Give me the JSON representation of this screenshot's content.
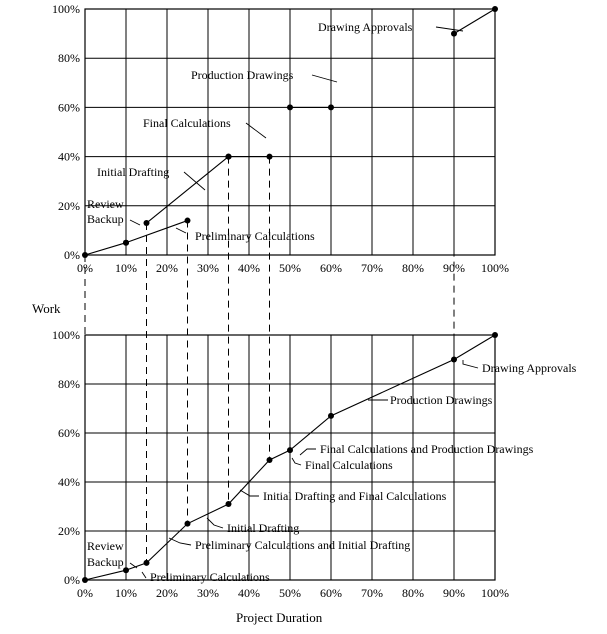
{
  "chart_data": [
    {
      "type": "line",
      "x_ticks": [
        "0%",
        "10%",
        "20%",
        "30%",
        "40%",
        "50%",
        "60%",
        "70%",
        "80%",
        "90%",
        "100%"
      ],
      "y_ticks": [
        "0%",
        "20%",
        "40%",
        "60%",
        "80%",
        "100%"
      ],
      "xlim": [
        0,
        100
      ],
      "ylim": [
        0,
        100
      ],
      "grid": true,
      "series": [
        {
          "name": "Review Backup",
          "points": [
            [
              0,
              0
            ],
            [
              10,
              5
            ]
          ]
        },
        {
          "name": "Preliminary Calculations",
          "points": [
            [
              10,
              5
            ],
            [
              25,
              14
            ]
          ]
        },
        {
          "name": "Initial Drafting",
          "points": [
            [
              15,
              13
            ],
            [
              35,
              40
            ]
          ]
        },
        {
          "name": "Final Calculations",
          "points": [
            [
              35,
              40
            ],
            [
              45,
              40
            ]
          ]
        },
        {
          "name": "Production Drawings",
          "points": [
            [
              50,
              60
            ],
            [
              60,
              60
            ]
          ]
        },
        {
          "name": "Drawing Approvals",
          "points": [
            [
              90,
              90
            ],
            [
              100,
              100
            ]
          ]
        }
      ],
      "annotations": [
        {
          "text": "Drawing Approvals",
          "at": [
            90,
            90
          ]
        },
        {
          "text": "Production Drawings",
          "at": [
            60,
            71
          ]
        },
        {
          "text": "Final Calculations",
          "at": [
            44,
            47
          ]
        },
        {
          "text": "Initial Drafting",
          "at": [
            29,
            26
          ]
        },
        {
          "text": "Review",
          "at": [
            6,
            4
          ]
        },
        {
          "text": "Backup",
          "at": [
            6,
            4
          ]
        },
        {
          "text": "Preliminary Calculations",
          "at": [
            23,
            10
          ]
        }
      ]
    },
    {
      "type": "line",
      "x_ticks": [
        "0%",
        "10%",
        "20%",
        "30%",
        "40%",
        "50%",
        "60%",
        "70%",
        "80%",
        "90%",
        "100%"
      ],
      "y_ticks": [
        "0%",
        "20%",
        "40%",
        "60%",
        "80%",
        "100%"
      ],
      "xlim": [
        0,
        100
      ],
      "ylim": [
        0,
        100
      ],
      "grid": true,
      "series": [
        {
          "name": "Cumulative Work",
          "points": [
            [
              0,
              0
            ],
            [
              10,
              4
            ],
            [
              15,
              7
            ],
            [
              25,
              23
            ],
            [
              35,
              31
            ],
            [
              45,
              49
            ],
            [
              50,
              53
            ],
            [
              60,
              67
            ],
            [
              90,
              90
            ],
            [
              100,
              100
            ]
          ]
        }
      ],
      "annotations": [
        {
          "text": "Drawing Approvals",
          "at": [
            94,
            95
          ]
        },
        {
          "text": "Production Drawings",
          "at": [
            69,
            76
          ]
        },
        {
          "text": "Final Calculations and Production Drawings",
          "at": [
            52,
            59
          ]
        },
        {
          "text": "Final Calculations",
          "at": [
            47,
            51
          ]
        },
        {
          "text": "Initial Drafting and Final Calculations",
          "at": [
            37,
            39
          ]
        },
        {
          "text": "Initial Drafting",
          "at": [
            27,
            21
          ]
        },
        {
          "text": "Preliminary Calculations and Initial Drafting",
          "at": [
            18,
            14
          ]
        },
        {
          "text": "Review",
          "at": [
            6,
            4
          ]
        },
        {
          "text": "Backup",
          "at": [
            6,
            4
          ]
        },
        {
          "text": "Preliminary Calculations",
          "at": [
            13,
            5
          ]
        }
      ]
    }
  ],
  "shared": {
    "ylabel": "Work",
    "xlabel": "Project Duration",
    "milestones_x": [
      0,
      15,
      25,
      35,
      45,
      90
    ]
  }
}
